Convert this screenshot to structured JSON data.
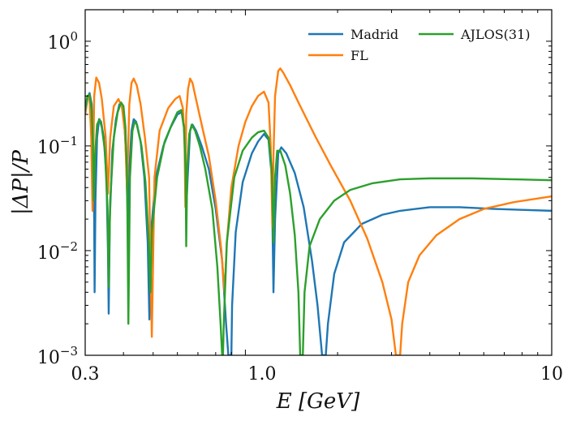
{
  "chart_data": {
    "type": "line",
    "xscale": "log",
    "yscale": "log",
    "xlabel": "E [GeV]",
    "ylabel": "|ΔP|/P",
    "xlim": [
      0.3,
      10
    ],
    "ylim": [
      0.001,
      2
    ],
    "xticks": [
      {
        "value": 0.3,
        "label": "0.3"
      },
      {
        "value": 1.0,
        "label": "1.0"
      },
      {
        "value": 10,
        "label": "10"
      }
    ],
    "yticks": [
      {
        "value": 1,
        "base": "10",
        "exp": "0"
      },
      {
        "value": 0.1,
        "base": "10",
        "exp": "−1"
      },
      {
        "value": 0.01,
        "base": "10",
        "exp": "−2"
      },
      {
        "value": 0.001,
        "base": "10",
        "exp": "−3"
      }
    ],
    "legend_position": "top-right",
    "series": [
      {
        "name": "Madrid",
        "color": "#1f77b4",
        "points": [
          [
            0.3,
            0.2
          ],
          [
            0.305,
            0.28
          ],
          [
            0.31,
            0.32
          ],
          [
            0.315,
            0.25
          ],
          [
            0.318,
            0.12
          ],
          [
            0.321,
            0.02
          ],
          [
            0.322,
            0.004
          ],
          [
            0.324,
            0.03
          ],
          [
            0.328,
            0.12
          ],
          [
            0.333,
            0.18
          ],
          [
            0.338,
            0.17
          ],
          [
            0.345,
            0.12
          ],
          [
            0.352,
            0.05
          ],
          [
            0.356,
            0.01
          ],
          [
            0.358,
            0.0025
          ],
          [
            0.361,
            0.02
          ],
          [
            0.368,
            0.09
          ],
          [
            0.378,
            0.18
          ],
          [
            0.388,
            0.25
          ],
          [
            0.395,
            0.25
          ],
          [
            0.402,
            0.18
          ],
          [
            0.408,
            0.08
          ],
          [
            0.413,
            0.02
          ],
          [
            0.414,
            0.012
          ],
          [
            0.418,
            0.06
          ],
          [
            0.425,
            0.14
          ],
          [
            0.432,
            0.18
          ],
          [
            0.44,
            0.17
          ],
          [
            0.455,
            0.11
          ],
          [
            0.468,
            0.05
          ],
          [
            0.48,
            0.012
          ],
          [
            0.486,
            0.0022
          ],
          [
            0.492,
            0.015
          ],
          [
            0.51,
            0.05
          ],
          [
            0.54,
            0.1
          ],
          [
            0.57,
            0.15
          ],
          [
            0.6,
            0.2
          ],
          [
            0.62,
            0.21
          ],
          [
            0.632,
            0.15
          ],
          [
            0.64,
            0.06
          ],
          [
            0.643,
            0.03
          ],
          [
            0.648,
            0.05
          ],
          [
            0.66,
            0.14
          ],
          [
            0.672,
            0.16
          ],
          [
            0.69,
            0.14
          ],
          [
            0.72,
            0.1
          ],
          [
            0.76,
            0.06
          ],
          [
            0.8,
            0.025
          ],
          [
            0.84,
            0.008
          ],
          [
            0.865,
            0.002
          ],
          [
            0.88,
            0.001
          ],
          [
            0.9,
            0.001
          ],
          [
            0.905,
            0.003
          ],
          [
            0.93,
            0.015
          ],
          [
            0.98,
            0.045
          ],
          [
            1.05,
            0.085
          ],
          [
            1.1,
            0.11
          ],
          [
            1.15,
            0.13
          ],
          [
            1.19,
            0.115
          ],
          [
            1.22,
            0.05
          ],
          [
            1.235,
            0.004
          ],
          [
            1.25,
            0.02
          ],
          [
            1.28,
            0.085
          ],
          [
            1.31,
            0.097
          ],
          [
            1.36,
            0.085
          ],
          [
            1.45,
            0.055
          ],
          [
            1.55,
            0.026
          ],
          [
            1.65,
            0.008
          ],
          [
            1.72,
            0.003
          ],
          [
            1.78,
            0.001
          ],
          [
            1.83,
            0.001
          ],
          [
            1.86,
            0.002
          ],
          [
            1.95,
            0.006
          ],
          [
            2.1,
            0.012
          ],
          [
            2.4,
            0.018
          ],
          [
            2.8,
            0.022
          ],
          [
            3.2,
            0.024
          ],
          [
            4.0,
            0.026
          ],
          [
            5.0,
            0.026
          ],
          [
            6.5,
            0.025
          ],
          [
            8.0,
            0.0245
          ],
          [
            10.0,
            0.024
          ]
        ]
      },
      {
        "name": "FL",
        "color": "#ff7f0e",
        "points": [
          [
            0.3,
            0.2
          ],
          [
            0.305,
            0.3
          ],
          [
            0.31,
            0.28
          ],
          [
            0.314,
            0.12
          ],
          [
            0.317,
            0.024
          ],
          [
            0.321,
            0.3
          ],
          [
            0.326,
            0.45
          ],
          [
            0.333,
            0.4
          ],
          [
            0.34,
            0.28
          ],
          [
            0.35,
            0.12
          ],
          [
            0.356,
            0.035
          ],
          [
            0.362,
            0.12
          ],
          [
            0.372,
            0.24
          ],
          [
            0.385,
            0.28
          ],
          [
            0.395,
            0.24
          ],
          [
            0.405,
            0.13
          ],
          [
            0.411,
            0.037
          ],
          [
            0.418,
            0.25
          ],
          [
            0.425,
            0.4
          ],
          [
            0.432,
            0.44
          ],
          [
            0.442,
            0.38
          ],
          [
            0.455,
            0.25
          ],
          [
            0.47,
            0.12
          ],
          [
            0.485,
            0.05
          ],
          [
            0.495,
            0.0015
          ],
          [
            0.505,
            0.05
          ],
          [
            0.525,
            0.14
          ],
          [
            0.56,
            0.23
          ],
          [
            0.59,
            0.28
          ],
          [
            0.61,
            0.3
          ],
          [
            0.625,
            0.23
          ],
          [
            0.633,
            0.12
          ],
          [
            0.637,
            0.026
          ],
          [
            0.641,
            0.2
          ],
          [
            0.65,
            0.35
          ],
          [
            0.66,
            0.44
          ],
          [
            0.672,
            0.4
          ],
          [
            0.69,
            0.28
          ],
          [
            0.72,
            0.16
          ],
          [
            0.76,
            0.08
          ],
          [
            0.8,
            0.03
          ],
          [
            0.835,
            0.01
          ],
          [
            0.855,
            0.004
          ],
          [
            0.87,
            0.012
          ],
          [
            0.9,
            0.04
          ],
          [
            0.95,
            0.1
          ],
          [
            1.0,
            0.17
          ],
          [
            1.05,
            0.24
          ],
          [
            1.1,
            0.3
          ],
          [
            1.15,
            0.33
          ],
          [
            1.19,
            0.26
          ],
          [
            1.21,
            0.1
          ],
          [
            1.225,
            0.017
          ],
          [
            1.235,
            0.08
          ],
          [
            1.25,
            0.3
          ],
          [
            1.28,
            0.52
          ],
          [
            1.3,
            0.55
          ],
          [
            1.33,
            0.5
          ],
          [
            1.4,
            0.38
          ],
          [
            1.5,
            0.25
          ],
          [
            1.7,
            0.12
          ],
          [
            1.9,
            0.065
          ],
          [
            2.2,
            0.03
          ],
          [
            2.5,
            0.013
          ],
          [
            2.8,
            0.005
          ],
          [
            3.0,
            0.0022
          ],
          [
            3.1,
            0.001
          ],
          [
            3.2,
            0.001
          ],
          [
            3.25,
            0.002
          ],
          [
            3.4,
            0.005
          ],
          [
            3.7,
            0.009
          ],
          [
            4.2,
            0.014
          ],
          [
            5.0,
            0.02
          ],
          [
            6.0,
            0.025
          ],
          [
            7.5,
            0.029
          ],
          [
            10.0,
            0.033
          ]
        ]
      },
      {
        "name": "AJLOS(31)",
        "color": "#2ca02c",
        "points": [
          [
            0.3,
            0.22
          ],
          [
            0.305,
            0.3
          ],
          [
            0.31,
            0.31
          ],
          [
            0.315,
            0.22
          ],
          [
            0.318,
            0.1
          ],
          [
            0.32,
            0.03
          ],
          [
            0.323,
            0.08
          ],
          [
            0.328,
            0.16
          ],
          [
            0.334,
            0.18
          ],
          [
            0.34,
            0.15
          ],
          [
            0.348,
            0.09
          ],
          [
            0.355,
            0.025
          ],
          [
            0.358,
            0.0045
          ],
          [
            0.362,
            0.03
          ],
          [
            0.372,
            0.12
          ],
          [
            0.383,
            0.21
          ],
          [
            0.393,
            0.26
          ],
          [
            0.4,
            0.24
          ],
          [
            0.406,
            0.15
          ],
          [
            0.411,
            0.05
          ],
          [
            0.415,
            0.002
          ],
          [
            0.42,
            0.05
          ],
          [
            0.428,
            0.14
          ],
          [
            0.435,
            0.17
          ],
          [
            0.443,
            0.16
          ],
          [
            0.458,
            0.1
          ],
          [
            0.472,
            0.045
          ],
          [
            0.484,
            0.012
          ],
          [
            0.49,
            0.004
          ],
          [
            0.495,
            0.015
          ],
          [
            0.515,
            0.05
          ],
          [
            0.545,
            0.11
          ],
          [
            0.575,
            0.16
          ],
          [
            0.6,
            0.21
          ],
          [
            0.618,
            0.22
          ],
          [
            0.63,
            0.15
          ],
          [
            0.638,
            0.06
          ],
          [
            0.641,
            0.011
          ],
          [
            0.646,
            0.06
          ],
          [
            0.656,
            0.13
          ],
          [
            0.668,
            0.16
          ],
          [
            0.685,
            0.14
          ],
          [
            0.71,
            0.1
          ],
          [
            0.74,
            0.06
          ],
          [
            0.78,
            0.025
          ],
          [
            0.81,
            0.007
          ],
          [
            0.83,
            0.002
          ],
          [
            0.84,
            0.001
          ],
          [
            0.845,
            0.001
          ],
          [
            0.85,
            0.002
          ],
          [
            0.87,
            0.012
          ],
          [
            0.92,
            0.05
          ],
          [
            0.98,
            0.09
          ],
          [
            1.05,
            0.12
          ],
          [
            1.1,
            0.135
          ],
          [
            1.15,
            0.14
          ],
          [
            1.19,
            0.12
          ],
          [
            1.22,
            0.06
          ],
          [
            1.235,
            0.012
          ],
          [
            1.25,
            0.05
          ],
          [
            1.27,
            0.09
          ],
          [
            1.3,
            0.09
          ],
          [
            1.35,
            0.065
          ],
          [
            1.4,
            0.035
          ],
          [
            1.45,
            0.014
          ],
          [
            1.49,
            0.004
          ],
          [
            1.51,
            0.001
          ],
          [
            1.54,
            0.001
          ],
          [
            1.56,
            0.004
          ],
          [
            1.62,
            0.011
          ],
          [
            1.75,
            0.02
          ],
          [
            1.95,
            0.03
          ],
          [
            2.2,
            0.038
          ],
          [
            2.6,
            0.044
          ],
          [
            3.2,
            0.048
          ],
          [
            4.0,
            0.049
          ],
          [
            5.5,
            0.049
          ],
          [
            7.5,
            0.048
          ],
          [
            10.0,
            0.047
          ]
        ]
      }
    ]
  }
}
